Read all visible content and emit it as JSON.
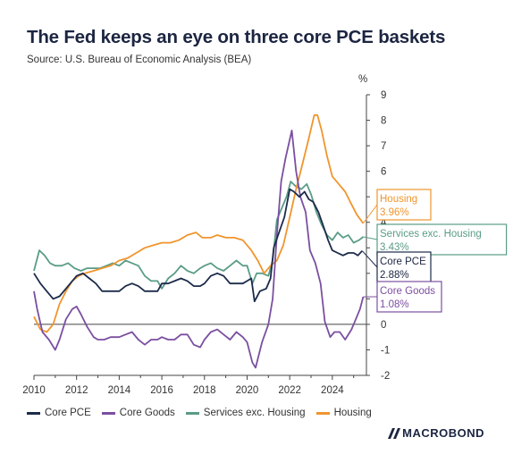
{
  "title": "The Fed keeps an eye on three core PCE baskets",
  "subtitle": "Source: U.S. Bureau of Economic Analysis (BEA)",
  "brand": "MACROBOND",
  "chart_data": {
    "type": "line",
    "yunit": "%",
    "ylim": [
      -2,
      9
    ],
    "xlim": [
      2010,
      2025.6
    ],
    "yticks": [
      "-2",
      "-1",
      "0",
      "1",
      "2",
      "3",
      "4",
      "5",
      "6",
      "7",
      "8",
      "9"
    ],
    "xticks": [
      "2010",
      "2012",
      "2014",
      "2016",
      "2018",
      "2020",
      "2022",
      "2024"
    ],
    "grid": false,
    "legend_position": "bottom",
    "series": [
      {
        "name": "Core PCE",
        "color": "#1c2b4a",
        "end_label": "Core PCE",
        "end_value": "2.88%",
        "points": [
          [
            2010.0,
            2.0
          ],
          [
            2010.3,
            1.6
          ],
          [
            2010.6,
            1.3
          ],
          [
            2010.9,
            1.0
          ],
          [
            2011.2,
            1.1
          ],
          [
            2011.5,
            1.4
          ],
          [
            2011.8,
            1.7
          ],
          [
            2012.0,
            1.9
          ],
          [
            2012.3,
            2.0
          ],
          [
            2012.6,
            1.8
          ],
          [
            2012.9,
            1.6
          ],
          [
            2013.2,
            1.3
          ],
          [
            2013.5,
            1.3
          ],
          [
            2013.8,
            1.3
          ],
          [
            2014.0,
            1.3
          ],
          [
            2014.3,
            1.5
          ],
          [
            2014.6,
            1.6
          ],
          [
            2014.9,
            1.5
          ],
          [
            2015.2,
            1.3
          ],
          [
            2015.5,
            1.3
          ],
          [
            2015.8,
            1.3
          ],
          [
            2016.0,
            1.6
          ],
          [
            2016.3,
            1.6
          ],
          [
            2016.6,
            1.7
          ],
          [
            2016.9,
            1.8
          ],
          [
            2017.2,
            1.7
          ],
          [
            2017.5,
            1.5
          ],
          [
            2017.8,
            1.5
          ],
          [
            2018.0,
            1.6
          ],
          [
            2018.3,
            1.9
          ],
          [
            2018.6,
            2.0
          ],
          [
            2018.9,
            1.9
          ],
          [
            2019.2,
            1.6
          ],
          [
            2019.5,
            1.6
          ],
          [
            2019.8,
            1.6
          ],
          [
            2020.0,
            1.7
          ],
          [
            2020.2,
            1.8
          ],
          [
            2020.35,
            0.9
          ],
          [
            2020.6,
            1.3
          ],
          [
            2020.9,
            1.4
          ],
          [
            2021.1,
            1.8
          ],
          [
            2021.25,
            3.0
          ],
          [
            2021.5,
            3.6
          ],
          [
            2021.75,
            4.2
          ],
          [
            2022.0,
            5.3
          ],
          [
            2022.2,
            5.2
          ],
          [
            2022.45,
            5.0
          ],
          [
            2022.7,
            5.2
          ],
          [
            2022.9,
            4.9
          ],
          [
            2023.1,
            4.8
          ],
          [
            2023.35,
            4.4
          ],
          [
            2023.6,
            3.8
          ],
          [
            2023.8,
            3.3
          ],
          [
            2024.0,
            2.9
          ],
          [
            2024.25,
            2.8
          ],
          [
            2024.5,
            2.7
          ],
          [
            2024.75,
            2.8
          ],
          [
            2025.0,
            2.8
          ],
          [
            2025.2,
            2.7
          ],
          [
            2025.4,
            2.88
          ]
        ]
      },
      {
        "name": "Core Goods",
        "color": "#7b4fa0",
        "end_label": "Core Goods",
        "end_value": "1.08%",
        "points": [
          [
            2010.0,
            1.3
          ],
          [
            2010.15,
            0.6
          ],
          [
            2010.4,
            -0.3
          ],
          [
            2010.7,
            -0.6
          ],
          [
            2011.0,
            -1.0
          ],
          [
            2011.2,
            -0.6
          ],
          [
            2011.5,
            0.2
          ],
          [
            2011.8,
            0.6
          ],
          [
            2012.0,
            0.7
          ],
          [
            2012.2,
            0.4
          ],
          [
            2012.5,
            -0.1
          ],
          [
            2012.8,
            -0.5
          ],
          [
            2013.0,
            -0.6
          ],
          [
            2013.3,
            -0.6
          ],
          [
            2013.6,
            -0.5
          ],
          [
            2014.0,
            -0.5
          ],
          [
            2014.3,
            -0.4
          ],
          [
            2014.6,
            -0.3
          ],
          [
            2014.9,
            -0.6
          ],
          [
            2015.2,
            -0.8
          ],
          [
            2015.5,
            -0.6
          ],
          [
            2015.8,
            -0.6
          ],
          [
            2016.0,
            -0.5
          ],
          [
            2016.3,
            -0.6
          ],
          [
            2016.6,
            -0.6
          ],
          [
            2016.9,
            -0.4
          ],
          [
            2017.2,
            -0.4
          ],
          [
            2017.5,
            -0.8
          ],
          [
            2017.8,
            -0.9
          ],
          [
            2018.0,
            -0.6
          ],
          [
            2018.3,
            -0.3
          ],
          [
            2018.6,
            -0.2
          ],
          [
            2018.9,
            -0.4
          ],
          [
            2019.2,
            -0.6
          ],
          [
            2019.5,
            -0.3
          ],
          [
            2019.8,
            -0.5
          ],
          [
            2020.0,
            -0.7
          ],
          [
            2020.25,
            -1.5
          ],
          [
            2020.4,
            -1.7
          ],
          [
            2020.7,
            -0.7
          ],
          [
            2021.0,
            0.0
          ],
          [
            2021.2,
            1.0
          ],
          [
            2021.4,
            3.5
          ],
          [
            2021.6,
            5.6
          ],
          [
            2021.8,
            6.5
          ],
          [
            2022.1,
            7.6
          ],
          [
            2022.3,
            6.0
          ],
          [
            2022.5,
            5.0
          ],
          [
            2022.75,
            4.4
          ],
          [
            2022.95,
            2.9
          ],
          [
            2023.2,
            2.4
          ],
          [
            2023.45,
            1.6
          ],
          [
            2023.65,
            0.1
          ],
          [
            2023.9,
            -0.5
          ],
          [
            2024.1,
            -0.3
          ],
          [
            2024.35,
            -0.3
          ],
          [
            2024.6,
            -0.6
          ],
          [
            2024.9,
            -0.2
          ],
          [
            2025.1,
            0.2
          ],
          [
            2025.3,
            0.6
          ],
          [
            2025.45,
            1.08
          ]
        ]
      },
      {
        "name": "Services exc. Housing",
        "color": "#5a9c87",
        "end_label": "Services exc. Housing",
        "end_value": "3.43%",
        "points": [
          [
            2010.0,
            2.1
          ],
          [
            2010.25,
            2.9
          ],
          [
            2010.5,
            2.7
          ],
          [
            2010.75,
            2.4
          ],
          [
            2011.0,
            2.3
          ],
          [
            2011.3,
            2.3
          ],
          [
            2011.6,
            2.4
          ],
          [
            2011.9,
            2.2
          ],
          [
            2012.2,
            2.1
          ],
          [
            2012.5,
            2.2
          ],
          [
            2012.8,
            2.2
          ],
          [
            2013.1,
            2.2
          ],
          [
            2013.4,
            2.3
          ],
          [
            2013.7,
            2.4
          ],
          [
            2014.0,
            2.3
          ],
          [
            2014.3,
            2.5
          ],
          [
            2014.6,
            2.4
          ],
          [
            2014.9,
            2.3
          ],
          [
            2015.2,
            1.9
          ],
          [
            2015.5,
            1.7
          ],
          [
            2015.8,
            1.7
          ],
          [
            2016.0,
            1.4
          ],
          [
            2016.3,
            1.8
          ],
          [
            2016.6,
            2.0
          ],
          [
            2016.9,
            2.3
          ],
          [
            2017.2,
            2.1
          ],
          [
            2017.5,
            2.0
          ],
          [
            2017.8,
            2.2
          ],
          [
            2018.0,
            2.3
          ],
          [
            2018.3,
            2.4
          ],
          [
            2018.6,
            2.2
          ],
          [
            2018.9,
            2.1
          ],
          [
            2019.2,
            2.3
          ],
          [
            2019.5,
            2.5
          ],
          [
            2019.8,
            2.3
          ],
          [
            2020.0,
            2.3
          ],
          [
            2020.25,
            1.6
          ],
          [
            2020.45,
            2.0
          ],
          [
            2020.7,
            2.0
          ],
          [
            2021.0,
            1.9
          ],
          [
            2021.2,
            2.5
          ],
          [
            2021.4,
            4.1
          ],
          [
            2021.6,
            4.5
          ],
          [
            2021.85,
            5.0
          ],
          [
            2022.05,
            5.6
          ],
          [
            2022.3,
            5.4
          ],
          [
            2022.55,
            5.3
          ],
          [
            2022.8,
            5.5
          ],
          [
            2023.0,
            5.1
          ],
          [
            2023.25,
            4.4
          ],
          [
            2023.5,
            3.9
          ],
          [
            2023.75,
            3.5
          ],
          [
            2024.0,
            3.3
          ],
          [
            2024.25,
            3.6
          ],
          [
            2024.5,
            3.4
          ],
          [
            2024.75,
            3.5
          ],
          [
            2025.0,
            3.2
          ],
          [
            2025.25,
            3.3
          ],
          [
            2025.45,
            3.43
          ]
        ]
      },
      {
        "name": "Housing",
        "color": "#f0952d",
        "end_label": "Housing",
        "end_value": "3.96%",
        "points": [
          [
            2010.0,
            0.3
          ],
          [
            2010.3,
            -0.2
          ],
          [
            2010.6,
            -0.3
          ],
          [
            2010.9,
            0.0
          ],
          [
            2011.2,
            0.8
          ],
          [
            2011.5,
            1.3
          ],
          [
            2011.8,
            1.7
          ],
          [
            2012.1,
            1.9
          ],
          [
            2012.4,
            2.0
          ],
          [
            2012.8,
            2.1
          ],
          [
            2013.2,
            2.2
          ],
          [
            2013.6,
            2.3
          ],
          [
            2014.0,
            2.5
          ],
          [
            2014.4,
            2.6
          ],
          [
            2014.8,
            2.8
          ],
          [
            2015.2,
            3.0
          ],
          [
            2015.6,
            3.1
          ],
          [
            2016.0,
            3.2
          ],
          [
            2016.4,
            3.2
          ],
          [
            2016.8,
            3.3
          ],
          [
            2017.2,
            3.5
          ],
          [
            2017.6,
            3.6
          ],
          [
            2017.9,
            3.4
          ],
          [
            2018.3,
            3.4
          ],
          [
            2018.6,
            3.5
          ],
          [
            2019.0,
            3.4
          ],
          [
            2019.4,
            3.4
          ],
          [
            2019.8,
            3.3
          ],
          [
            2020.2,
            2.9
          ],
          [
            2020.5,
            2.5
          ],
          [
            2020.8,
            2.0
          ],
          [
            2021.1,
            2.3
          ],
          [
            2021.4,
            2.5
          ],
          [
            2021.7,
            3.1
          ],
          [
            2022.0,
            4.2
          ],
          [
            2022.3,
            5.3
          ],
          [
            2022.6,
            6.3
          ],
          [
            2022.9,
            7.3
          ],
          [
            2023.15,
            8.2
          ],
          [
            2023.3,
            8.2
          ],
          [
            2023.5,
            7.6
          ],
          [
            2023.75,
            6.6
          ],
          [
            2024.0,
            5.8
          ],
          [
            2024.3,
            5.5
          ],
          [
            2024.6,
            5.2
          ],
          [
            2024.9,
            4.7
          ],
          [
            2025.15,
            4.3
          ],
          [
            2025.45,
            3.96
          ]
        ]
      }
    ]
  }
}
